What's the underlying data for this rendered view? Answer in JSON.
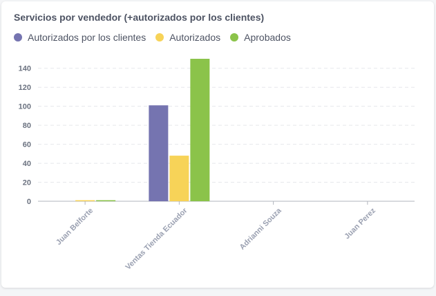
{
  "chart_data": {
    "type": "bar",
    "title": "Servicios por vendedor (+autorizados por los clientes)",
    "categories": [
      "Juan Belforte",
      "Ventas Tienda Ecuador",
      "Adrianni Souza",
      "Juan Perez"
    ],
    "series": [
      {
        "name": "Autorizados por los clientes",
        "color": "#7574b0",
        "values": [
          0,
          101,
          0,
          0
        ]
      },
      {
        "name": "Autorizados",
        "color": "#f7d358",
        "values": [
          1,
          48,
          0,
          0
        ]
      },
      {
        "name": "Aprobados",
        "color": "#8bc34a",
        "values": [
          1,
          150,
          0,
          0
        ]
      }
    ],
    "yticks": [
      0,
      20,
      40,
      60,
      80,
      100,
      120,
      140
    ],
    "ylim": [
      0,
      150
    ],
    "xlabel": "",
    "ylabel": "",
    "grid": true,
    "legend": "top-left"
  }
}
